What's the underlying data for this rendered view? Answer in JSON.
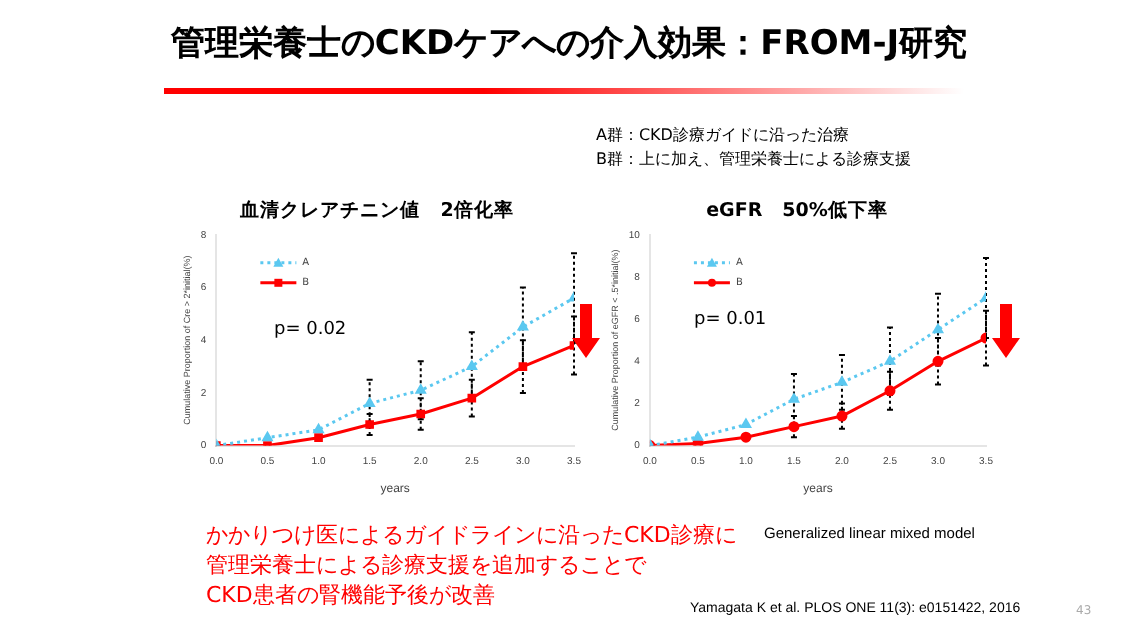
{
  "chart_data": [
    {
      "type": "line",
      "title": "血清クレアチニン値　2倍化率",
      "xlabel": "years",
      "ylabel": "Cumulative Proportion of Cre > 2*initial(%)",
      "x": [
        0,
        0.5,
        1,
        1.5,
        2,
        2.5,
        3,
        3.5
      ],
      "xlim": [
        0,
        3.5
      ],
      "xticks": [
        {
          "value": 0,
          "label": "0.0"
        },
        {
          "value": 0.5,
          "label": "0.5"
        },
        {
          "value": 1,
          "label": "1.0"
        },
        {
          "value": 1.5,
          "label": "1.5"
        },
        {
          "value": 2,
          "label": "2.0"
        },
        {
          "value": 2.5,
          "label": "2.5"
        },
        {
          "value": 3,
          "label": "3.0"
        },
        {
          "value": 3.5,
          "label": "3.5"
        }
      ],
      "ylim": [
        0,
        8
      ],
      "yticks": [
        0,
        2,
        4,
        6,
        8
      ],
      "grid": false,
      "legend": "top left",
      "series": [
        {
          "name": "A",
          "color": "#5bc8f0",
          "line_style": "dotted",
          "marker": "triangle",
          "values": [
            0,
            0.3,
            0.6,
            1.6,
            2.1,
            3.0,
            4.5,
            5.6
          ],
          "errors": [
            null,
            null,
            null,
            0.9,
            1.1,
            1.3,
            1.5,
            1.7
          ]
        },
        {
          "name": "B",
          "color": "#ff0000",
          "line_style": "solid",
          "marker": "square",
          "values": [
            0,
            0,
            0.3,
            0.8,
            1.2,
            1.8,
            3.0,
            3.8
          ],
          "errors": [
            null,
            null,
            null,
            0.4,
            0.6,
            0.7,
            1.0,
            1.1
          ]
        }
      ],
      "annotations": [
        "p= 0.02",
        "管理栄養士のCKDケアへの介入効果：FROM-J研究",
        "A群：CKD診療ガイドに沿った治療",
        "B群：上に加え、管理栄養士による診療支援",
        "かかりつけ医によるガイドラインに沿ったCKD診療に",
        "管理栄養士による診療支援を追加することで",
        "CKD患者の腎機能予後が改善",
        "Yamagata K et al. PLOS ONE 11(3): e0151422, 2016",
        "43"
      ]
    },
    {
      "type": "line",
      "title": "eGFR　50%低下率",
      "xlabel": "years",
      "ylabel": "Cumulative Proportion of eGFR < .5*initial(%)",
      "x": [
        0,
        0.5,
        1,
        1.5,
        2,
        2.5,
        3,
        3.5
      ],
      "xlim": [
        0,
        3.5
      ],
      "xticks": [
        {
          "value": 0,
          "label": "0.0"
        },
        {
          "value": 0.5,
          "label": "0.5"
        },
        {
          "value": 1,
          "label": "1.0"
        },
        {
          "value": 1.5,
          "label": "1.5"
        },
        {
          "value": 2,
          "label": "2.0"
        },
        {
          "value": 2.5,
          "label": "2.5"
        },
        {
          "value": 3,
          "label": "3.0"
        },
        {
          "value": 3.5,
          "label": "3.5"
        }
      ],
      "ylim": [
        0,
        10
      ],
      "yticks": [
        0,
        2,
        4,
        6,
        8,
        10
      ],
      "grid": false,
      "legend": "top left",
      "series": [
        {
          "name": "A",
          "color": "#5bc8f0",
          "line_style": "dotted",
          "marker": "triangle",
          "values": [
            0,
            0.4,
            1.0,
            2.2,
            3.0,
            4.0,
            5.5,
            7.0
          ],
          "errors": [
            null,
            null,
            null,
            1.2,
            1.3,
            1.6,
            1.7,
            1.9
          ]
        },
        {
          "name": "B",
          "color": "#ff0000",
          "line_style": "solid",
          "marker": "circle",
          "values": [
            0,
            0.1,
            0.4,
            0.9,
            1.4,
            2.6,
            4.0,
            5.1
          ],
          "errors": [
            null,
            null,
            null,
            0.5,
            0.6,
            0.9,
            1.1,
            1.3
          ]
        }
      ],
      "annotations": [
        "p= 0.01",
        "Generalized linear mixed model"
      ]
    }
  ]
}
